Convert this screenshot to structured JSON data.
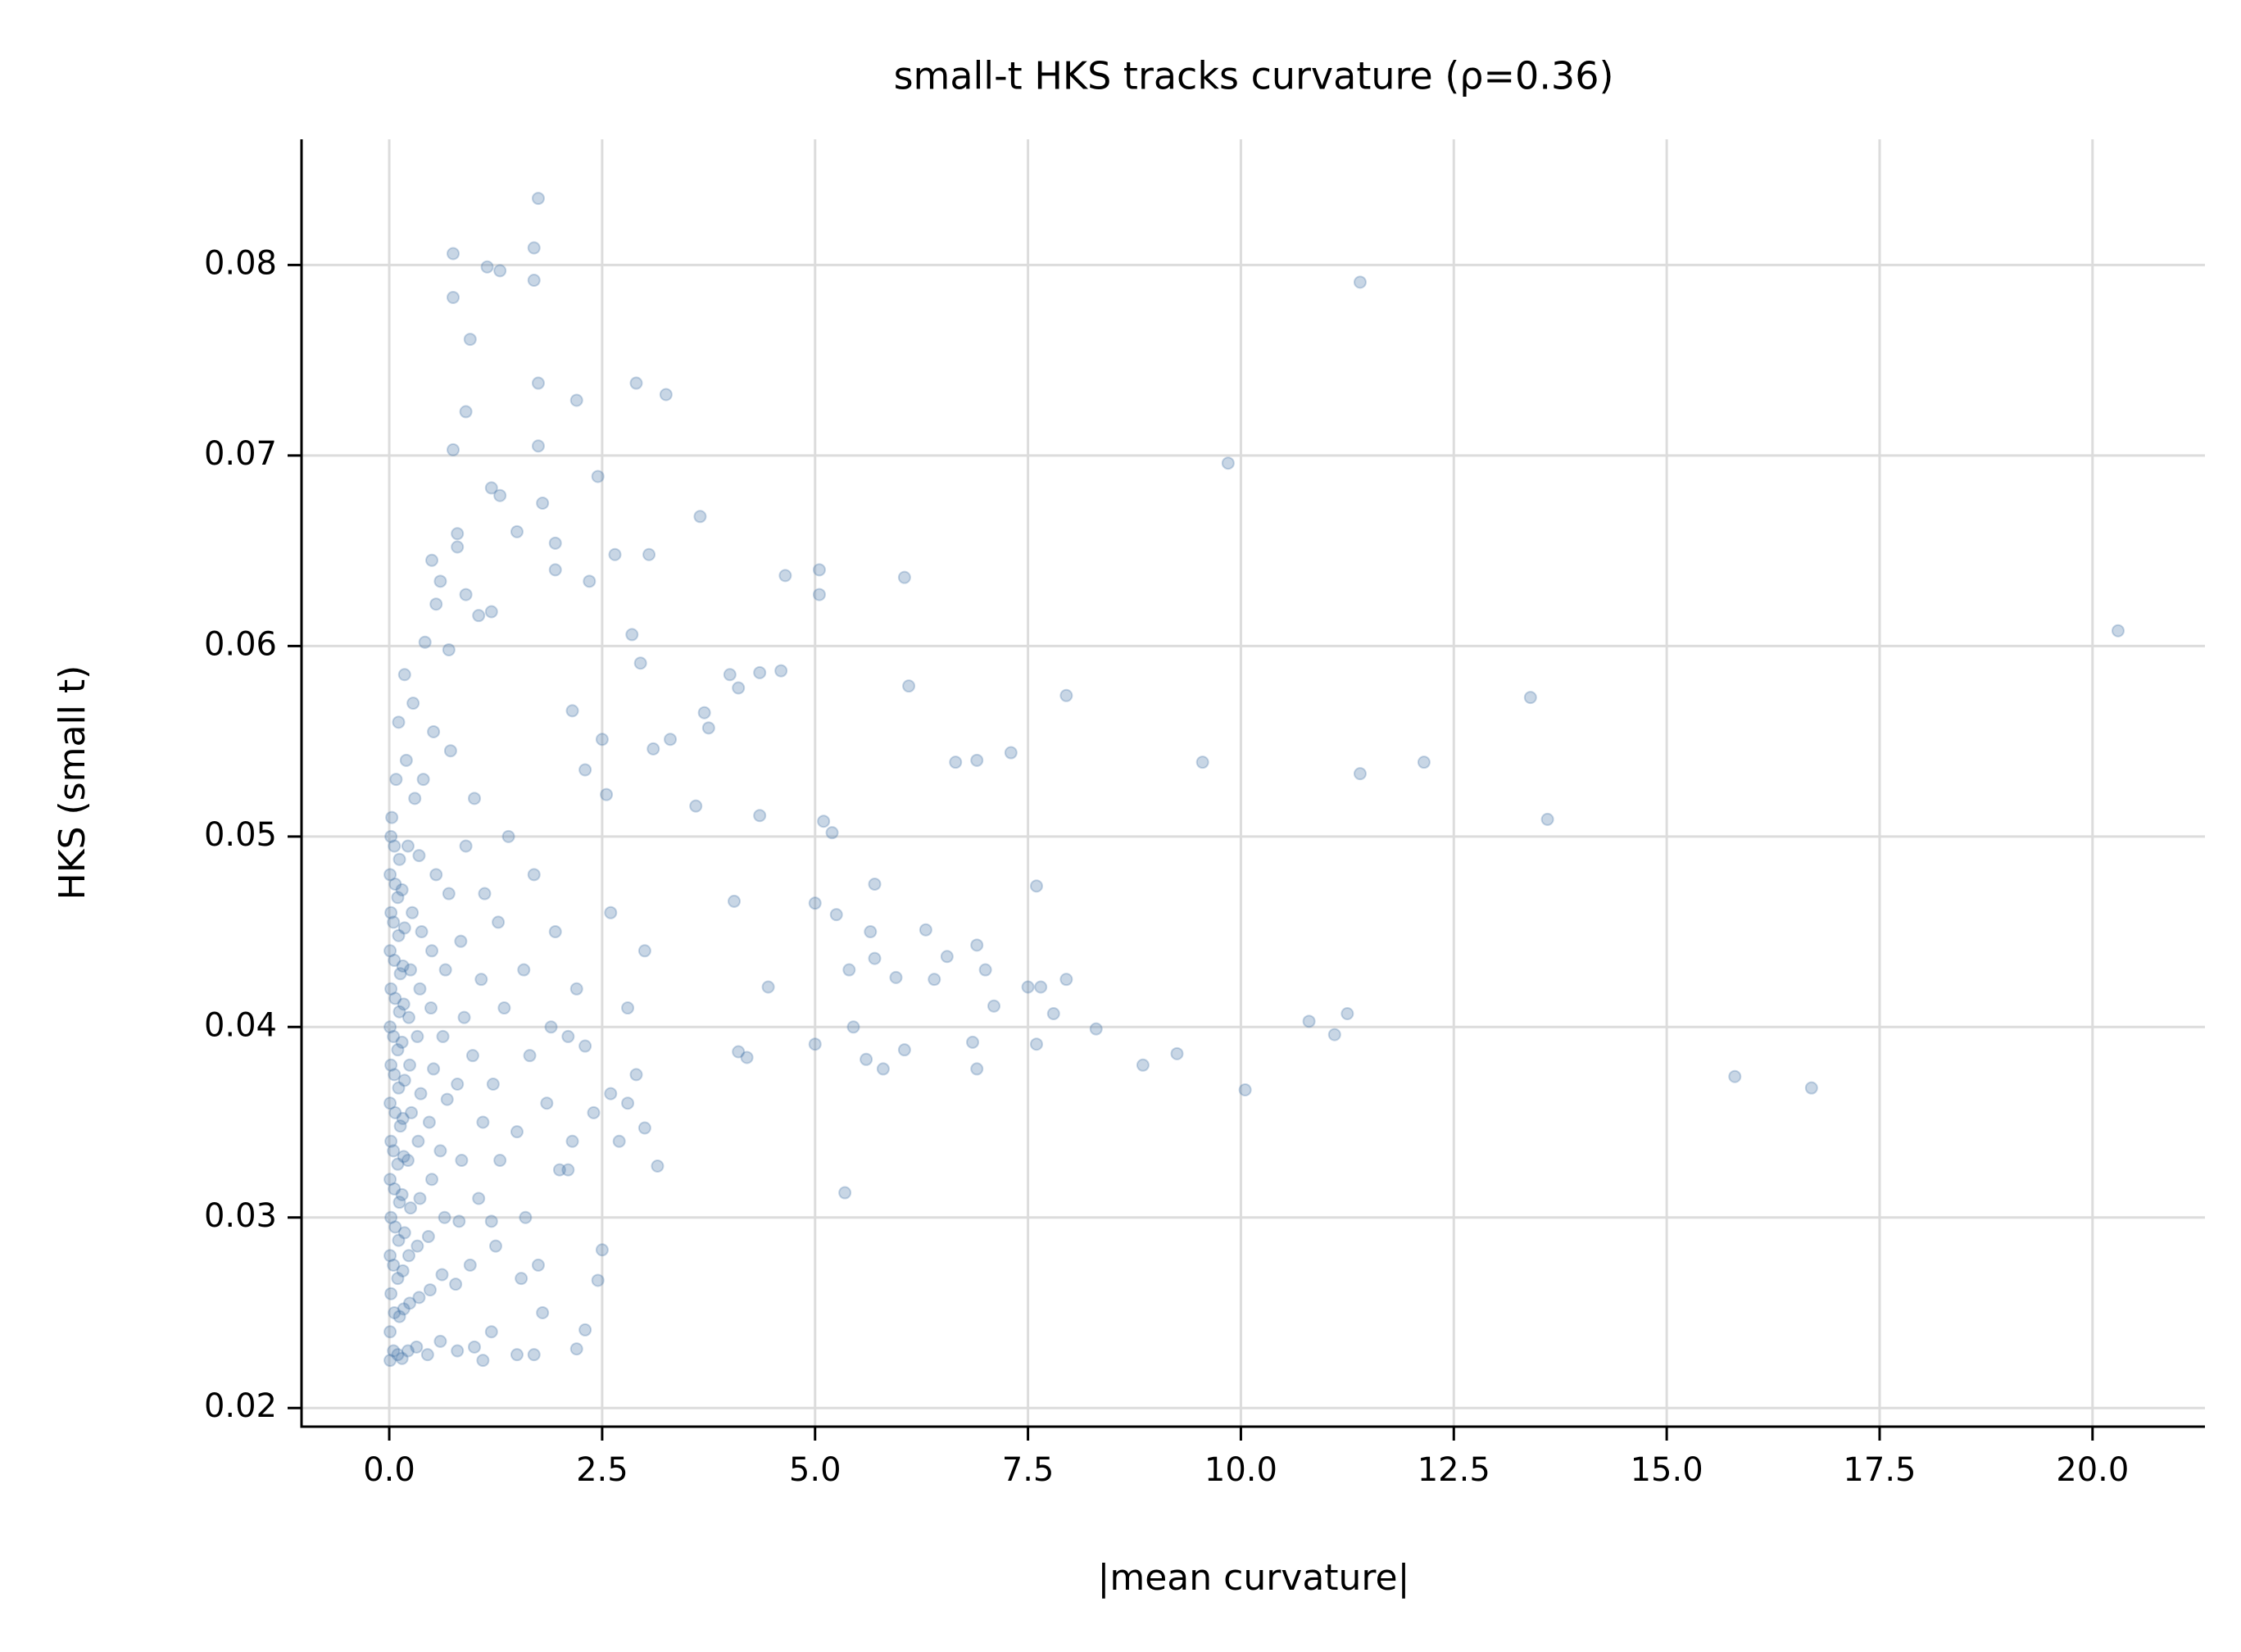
{
  "chart_data": {
    "type": "scatter",
    "title": "small-t HKS tracks curvature  (ρ=0.36)",
    "x_label": "|mean curvature|",
    "y_label": "HKS (small t)",
    "color": "#4878a8",
    "opacity": 0.3,
    "grid": true,
    "xlim": [
      -1.03,
      21.32
    ],
    "ylim": [
      0.01902,
      0.0866
    ],
    "xticks": [
      {
        "value": 0,
        "label": "0.0"
      },
      2.5,
      {
        "value": 5,
        "label": "5.0"
      },
      7.5,
      {
        "value": 10,
        "label": "10.0"
      },
      12.5,
      {
        "value": 15,
        "label": "15.0"
      },
      17.5,
      {
        "value": 20,
        "label": "20.0"
      }
    ],
    "yticks": [
      0.02,
      0.03,
      0.04,
      0.05,
      0.06,
      0.07,
      0.08
    ],
    "x": [
      20.3,
      16.7,
      15.8,
      13.6,
      13.4,
      12.15,
      11.4,
      11.4,
      11.25,
      11.1,
      10.8,
      10.05,
      9.85,
      9.55,
      9.25,
      8.85,
      8.3,
      7.95,
      7.95,
      7.8,
      7.65,
      7.5,
      7.6,
      7.6,
      7.3,
      7.1,
      7.0,
      6.9,
      6.9,
      6.9,
      6.85,
      6.65,
      6.55,
      6.4,
      6.3,
      6.1,
      6.05,
      6.05,
      5.95,
      5.7,
      5.7,
      5.8,
      5.65,
      5.6,
      5.35,
      5.45,
      5.4,
      5.2,
      5.25,
      5.1,
      5.05,
      5.05,
      5.0,
      5.0,
      4.65,
      4.6,
      4.45,
      4.35,
      4.35,
      4.1,
      4.05,
      4.0,
      4.1,
      4.2,
      3.65,
      3.7,
      3.75,
      3.6,
      3.25,
      3.05,
      2.9,
      2.85,
      2.95,
      3.1,
      3.3,
      2.65,
      2.45,
      2.2,
      2.35,
      2.15,
      2.3,
      2.5,
      2.55,
      3.15,
      3.0,
      2.5,
      2.45,
      2.3,
      2.2,
      1.75,
      1.7,
      1.7,
      1.75,
      1.75,
      1.8,
      1.3,
      1.15,
      0.95,
      0.75,
      0.75,
      0.9,
      0.75,
      1.2,
      1.3,
      1.5,
      1.95,
      1.95,
      0.5,
      0.6,
      0.8,
      0.8,
      0.9,
      0.55,
      1.2,
      1.05,
      0.7,
      0.01,
      0.01,
      0.02,
      0.01,
      0.02,
      0.01,
      0.02,
      0.01,
      0.02,
      0.01,
      0.02,
      0.01,
      0.02,
      0.01,
      0.02,
      0.03,
      0.05,
      0.06,
      0.05,
      0.07,
      0.06,
      0.05,
      0.07,
      0.06,
      0.05,
      0.07,
      0.06,
      0.05,
      0.07,
      0.06,
      0.08,
      0.1,
      0.12,
      0.1,
      0.11,
      0.12,
      0.1,
      0.13,
      0.11,
      0.1,
      0.12,
      0.13,
      0.11,
      0.1,
      0.12,
      0.11,
      0.15,
      0.17,
      0.16,
      0.18,
      0.15,
      0.17,
      0.16,
      0.18,
      0.15,
      0.17,
      0.16,
      0.18,
      0.15,
      0.2,
      0.18,
      0.22,
      0.24,
      0.23,
      0.25,
      0.22,
      0.26,
      0.24,
      0.23,
      0.25,
      0.27,
      0.22,
      0.3,
      0.28,
      0.32,
      0.35,
      0.33,
      0.36,
      0.34,
      0.37,
      0.33,
      0.36,
      0.38,
      0.35,
      0.4,
      0.42,
      0.45,
      0.48,
      0.46,
      0.5,
      0.47,
      0.52,
      0.49,
      0.5,
      0.55,
      0.52,
      0.6,
      0.62,
      0.65,
      0.6,
      0.68,
      0.63,
      0.66,
      0.7,
      0.72,
      0.8,
      0.78,
      0.82,
      0.85,
      0.8,
      0.88,
      0.84,
      0.9,
      1.0,
      0.95,
      1.05,
      1.1,
      0.98,
      1.08,
      1.12,
      1.0,
      1.2,
      1.25,
      1.3,
      1.22,
      1.35,
      1.28,
      1.4,
      1.5,
      1.55,
      1.6,
      1.5,
      1.65,
      1.58,
      1.7,
      1.7,
      1.75,
      1.8,
      1.85,
      1.9,
      1.95,
      2.0,
      2.1,
      2.15,
      2.3,
      2.4,
      2.6,
      2.7,
      2.8,
      2.9,
      3.0,
      2.8,
      2.6,
      2.2,
      2.1,
      1.2,
      1.1
    ],
    "values": [
      0.0608,
      0.0368,
      0.0374,
      0.0509,
      0.0573,
      0.0539,
      0.0791,
      0.0533,
      0.0407,
      0.0396,
      0.0403,
      0.0367,
      0.0696,
      0.0539,
      0.0386,
      0.038,
      0.0399,
      0.0574,
      0.0425,
      0.0407,
      0.0421,
      0.0421,
      0.0474,
      0.0391,
      0.0544,
      0.0411,
      0.043,
      0.054,
      0.0443,
      0.0378,
      0.0392,
      0.0539,
      0.0437,
      0.0425,
      0.0451,
      0.0579,
      0.0636,
      0.0388,
      0.0426,
      0.0475,
      0.0436,
      0.0378,
      0.045,
      0.0383,
      0.0313,
      0.04,
      0.043,
      0.0502,
      0.0459,
      0.0508,
      0.064,
      0.0627,
      0.0465,
      0.0391,
      0.0637,
      0.0587,
      0.0421,
      0.0511,
      0.0586,
      0.0578,
      0.0466,
      0.0585,
      0.0387,
      0.0384,
      0.0668,
      0.0565,
      0.0557,
      0.0516,
      0.0732,
      0.0648,
      0.0738,
      0.0606,
      0.0591,
      0.0546,
      0.0551,
      0.0648,
      0.0689,
      0.0729,
      0.0634,
      0.0566,
      0.0535,
      0.0551,
      0.0522,
      0.0327,
      0.0347,
      0.0283,
      0.0267,
      0.0241,
      0.0231,
      0.0835,
      0.0809,
      0.0792,
      0.0738,
      0.0705,
      0.0675,
      0.0797,
      0.0799,
      0.0761,
      0.0806,
      0.0783,
      0.0723,
      0.0703,
      0.0683,
      0.0679,
      0.066,
      0.0654,
      0.064,
      0.0645,
      0.0634,
      0.0659,
      0.0652,
      0.0627,
      0.0622,
      0.0618,
      0.0616,
      0.0598,
      0.0225,
      0.024,
      0.026,
      0.028,
      0.03,
      0.032,
      0.034,
      0.036,
      0.038,
      0.04,
      0.042,
      0.044,
      0.046,
      0.048,
      0.05,
      0.051,
      0.023,
      0.025,
      0.0275,
      0.0295,
      0.0315,
      0.0335,
      0.0355,
      0.0375,
      0.0395,
      0.0415,
      0.0435,
      0.0455,
      0.0475,
      0.0495,
      0.053,
      0.0228,
      0.0248,
      0.0268,
      0.0288,
      0.0308,
      0.0328,
      0.0348,
      0.0368,
      0.0388,
      0.0408,
      0.0428,
      0.0448,
      0.0468,
      0.0488,
      0.056,
      0.0226,
      0.0252,
      0.0272,
      0.0292,
      0.0312,
      0.0332,
      0.0352,
      0.0372,
      0.0392,
      0.0412,
      0.0432,
      0.0452,
      0.0472,
      0.054,
      0.0585,
      0.023,
      0.0255,
      0.028,
      0.0305,
      0.033,
      0.0355,
      0.038,
      0.0405,
      0.043,
      0.046,
      0.0495,
      0.052,
      0.057,
      0.0232,
      0.0258,
      0.0285,
      0.031,
      0.034,
      0.0365,
      0.0395,
      0.042,
      0.045,
      0.049,
      0.053,
      0.0602,
      0.0228,
      0.0262,
      0.029,
      0.032,
      0.035,
      0.0378,
      0.041,
      0.044,
      0.048,
      0.0555,
      0.0235,
      0.027,
      0.03,
      0.0335,
      0.0362,
      0.0395,
      0.043,
      0.047,
      0.0545,
      0.023,
      0.0265,
      0.0298,
      0.033,
      0.037,
      0.0405,
      0.0445,
      0.0495,
      0.0232,
      0.0275,
      0.031,
      0.035,
      0.0385,
      0.0425,
      0.047,
      0.052,
      0.024,
      0.0285,
      0.033,
      0.037,
      0.041,
      0.0455,
      0.05,
      0.0228,
      0.0268,
      0.03,
      0.0345,
      0.0385,
      0.043,
      0.048,
      0.0228,
      0.0275,
      0.025,
      0.036,
      0.04,
      0.045,
      0.0325,
      0.0395,
      0.034,
      0.039,
      0.0355,
      0.0365,
      0.034,
      0.036,
      0.0375,
      0.044,
      0.041,
      0.046,
      0.042,
      0.0325,
      0.0298,
      0.0225
    ]
  }
}
